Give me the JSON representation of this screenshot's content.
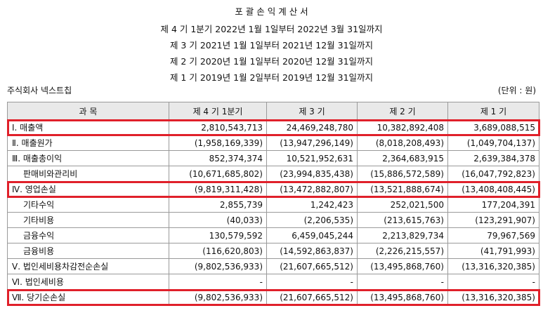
{
  "header": {
    "title": "포 괄 손 익 계 산 서",
    "periods": [
      "제 4 기 1분기 2022년 1월 1일부터 2022년 3월 31일까지",
      "제 3 기 2021년 1월 1일부터 2021년 12월 31일까지",
      "제 2 기 2020년 1월 1일부터 2020년 12월 31일까지",
      "제 1 기 2019년 1월 2일부터 2019년 12월 31일까지"
    ],
    "company": "주식회사 넥스트칩",
    "unit": "(단위 : 원)"
  },
  "table": {
    "columns": [
      "과   목",
      "제 4 기 1분기",
      "제 3 기",
      "제 2 기",
      "제 1 기"
    ],
    "rows": [
      {
        "label": "Ⅰ. 매출액",
        "values": [
          "2,810,543,713",
          "24,469,248,780",
          "10,382,892,408",
          "3,689,088,515"
        ],
        "highlight": true
      },
      {
        "label": "Ⅱ. 매출원가",
        "values": [
          "(1,958,169,339)",
          "(13,947,296,149)",
          "(8,018,208,493)",
          "(1,049,704,137)"
        ]
      },
      {
        "label": "Ⅲ. 매출총이익",
        "values": [
          "852,374,374",
          "10,521,952,631",
          "2,364,683,915",
          "2,639,384,378"
        ]
      },
      {
        "label": "판매비와관리비",
        "values": [
          "(10,671,685,802)",
          "(23,994,835,438)",
          "(15,886,572,589)",
          "(16,047,792,823)"
        ],
        "indent": true
      },
      {
        "label": "Ⅳ. 영업손실",
        "values": [
          "(9,819,311,428)",
          "(13,472,882,807)",
          "(13,521,888,674)",
          "(13,408,408,445)"
        ],
        "highlight": true
      },
      {
        "label": "기타수익",
        "values": [
          "2,855,739",
          "1,242,423",
          "252,021,500",
          "177,204,391"
        ],
        "indent": true
      },
      {
        "label": "기타비용",
        "values": [
          "(40,033)",
          "(2,206,535)",
          "(213,615,763)",
          "(123,291,907)"
        ],
        "indent": true
      },
      {
        "label": "금융수익",
        "values": [
          "130,579,592",
          "6,459,045,244",
          "2,213,829,734",
          "79,967,569"
        ],
        "indent": true
      },
      {
        "label": "금융비용",
        "values": [
          "(116,620,803)",
          "(14,592,863,837)",
          "(2,226,215,557)",
          "(41,791,993)"
        ],
        "indent": true
      },
      {
        "label": "Ⅴ. 법인세비용차감전순손실",
        "values": [
          "(9,802,536,933)",
          "(21,607,665,512)",
          "(13,495,868,760)",
          "(13,316,320,385)"
        ]
      },
      {
        "label": "Ⅵ. 법인세비용",
        "values": [
          "-",
          "-",
          "-",
          "-"
        ]
      },
      {
        "label": "Ⅶ. 당기순손실",
        "values": [
          "(9,802,536,933)",
          "(21,607,665,512)",
          "(13,495,868,760)",
          "(13,316,320,385)"
        ],
        "highlight": true
      }
    ]
  },
  "colors": {
    "highlight": "#e0202a",
    "header_bg": "#e9e9e9",
    "border": "#9a9a9a"
  }
}
